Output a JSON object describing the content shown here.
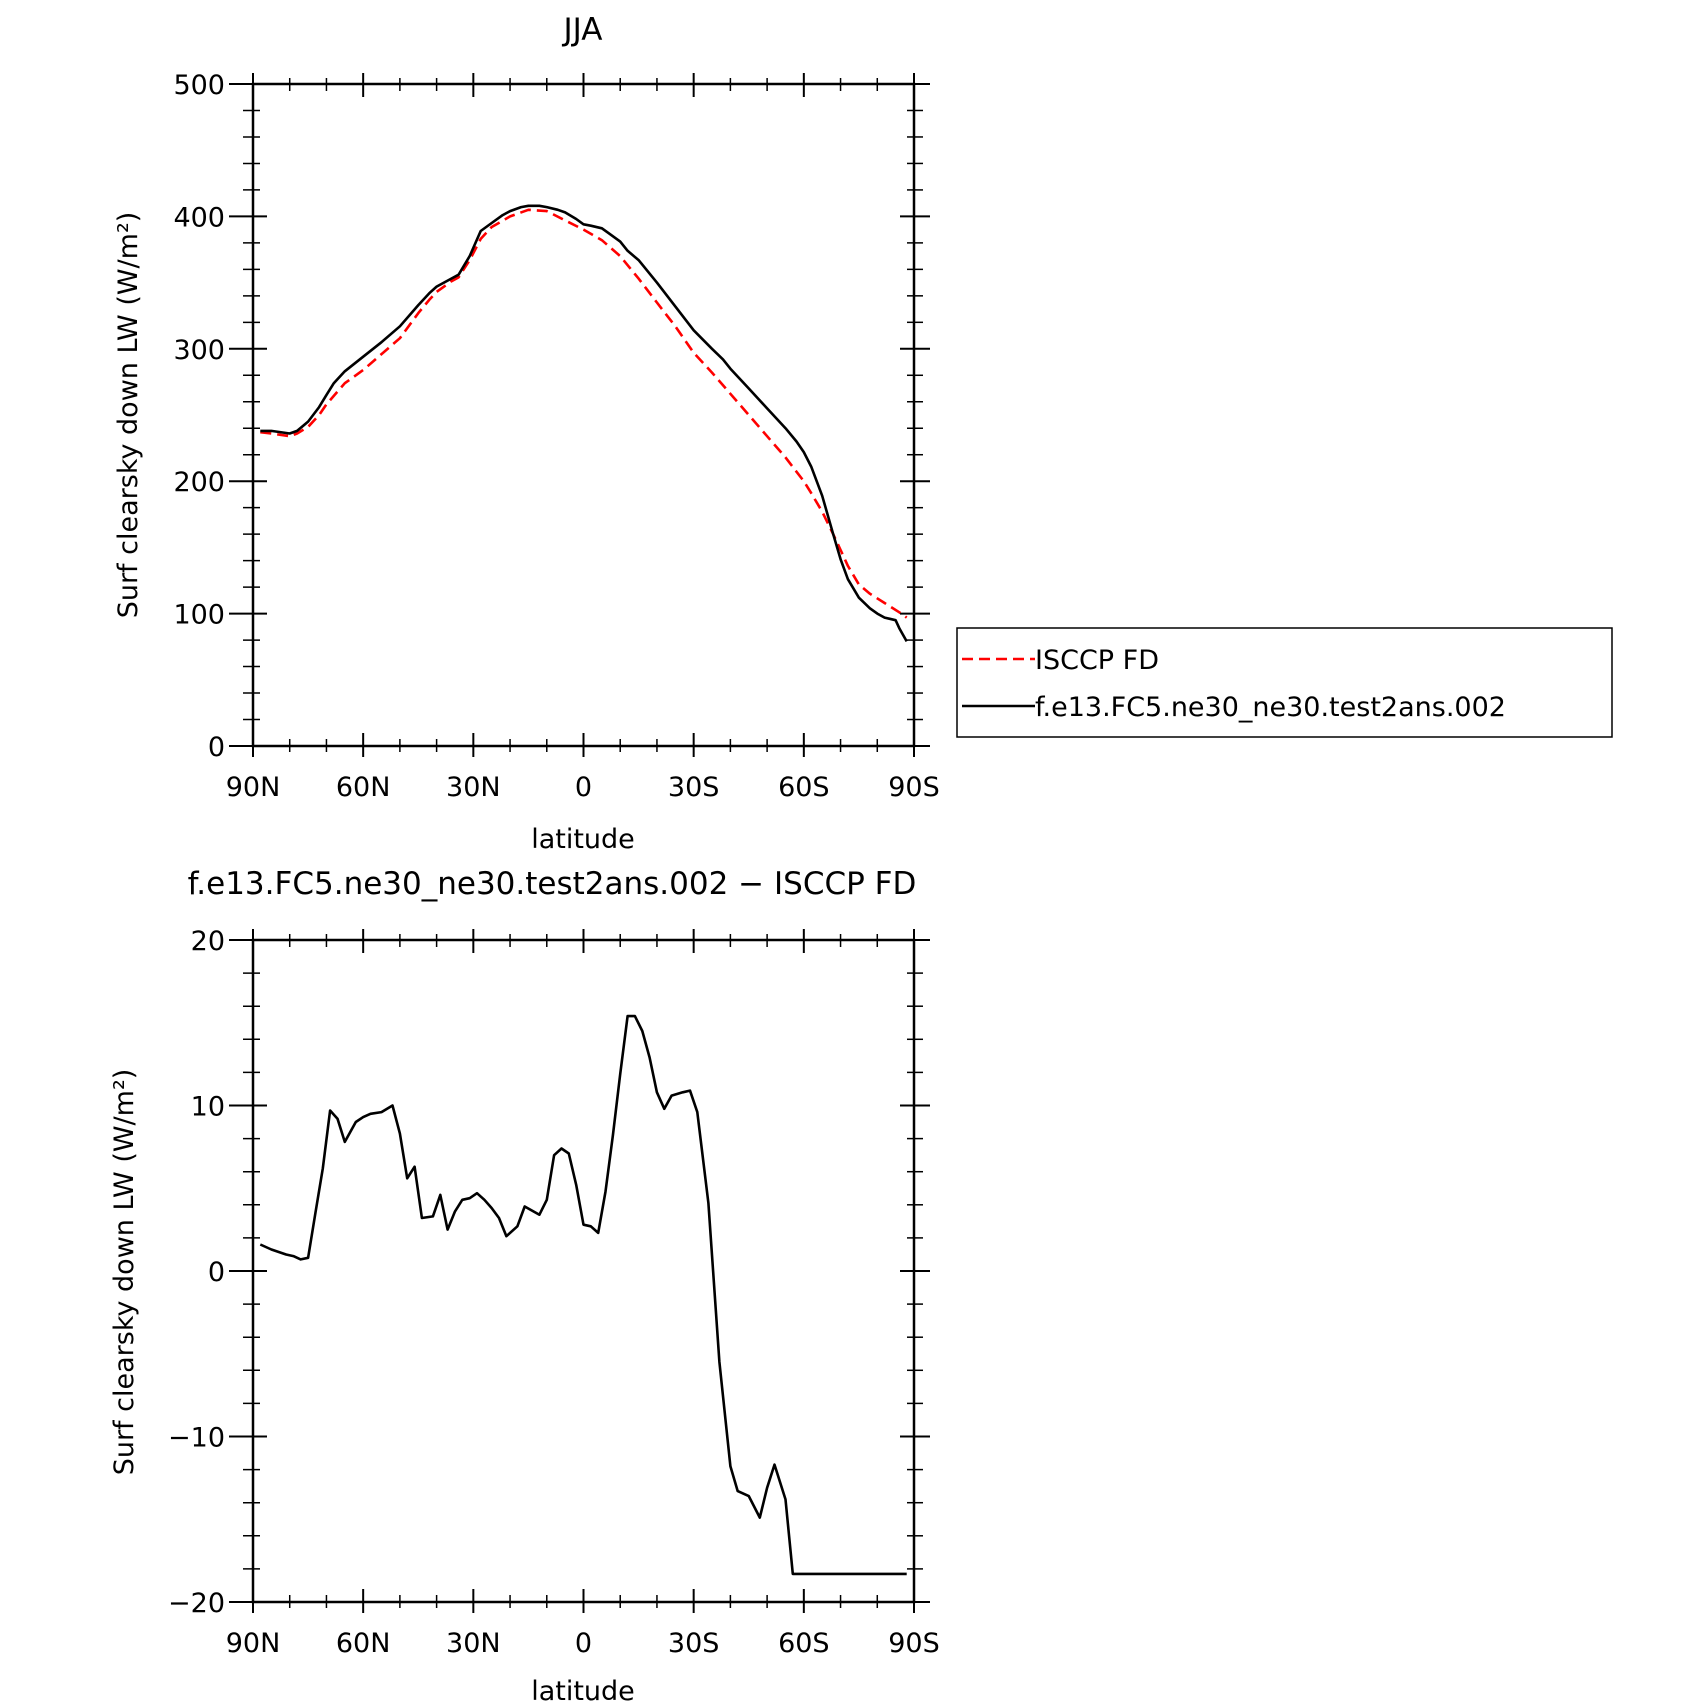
{
  "chart_data": [
    {
      "type": "line",
      "title": "JJA",
      "xlabel": "latitude",
      "ylabel": "Surf clearsky down LW (W/m²)",
      "ylim": [
        0,
        500
      ],
      "xlim": [
        90,
        -90
      ],
      "x_ticks": [
        90,
        60,
        30,
        0,
        -30,
        -60,
        -90
      ],
      "x_tick_labels": [
        "90N",
        "60N",
        "30N",
        "0",
        "30S",
        "60S",
        "90S"
      ],
      "y_ticks": [
        0,
        100,
        200,
        300,
        400,
        500
      ],
      "y_tick_labels": [
        "0",
        "100",
        "200",
        "300",
        "400",
        "500"
      ],
      "legend": "right",
      "series": [
        {
          "name": "ISCCP FD",
          "color": "#ff0000",
          "dash": "dashed",
          "x": [
            88,
            85,
            80,
            78,
            75,
            72,
            70,
            65,
            60,
            55,
            50,
            45,
            42,
            40,
            36,
            34,
            31,
            28,
            25,
            20,
            15,
            10,
            5,
            0,
            -5,
            -10,
            -15,
            -20,
            -25,
            -30,
            -35,
            -40,
            -45,
            -50,
            -55,
            -60,
            -62,
            -65,
            -68,
            -70,
            -72,
            -75,
            -78,
            -82,
            -86,
            -88
          ],
          "y": [
            237,
            236,
            234,
            236,
            241,
            250,
            258,
            274,
            284,
            296,
            308,
            327,
            337,
            343,
            351,
            354,
            367,
            383,
            392,
            400,
            405,
            404,
            397,
            390,
            382,
            370,
            353,
            335,
            317,
            297,
            282,
            266,
            250,
            234,
            218,
            200,
            191,
            177,
            160,
            148,
            136,
            122,
            115,
            108,
            101,
            97
          ]
        },
        {
          "name": "f.e13.FC5.ne30_ne30.test2ans.002",
          "color": "#000000",
          "dash": "solid",
          "x": [
            88,
            85,
            80,
            78,
            75,
            72,
            70,
            68,
            65,
            60,
            55,
            50,
            45,
            42,
            40,
            36,
            34,
            31,
            28,
            25,
            22,
            20,
            17,
            15,
            12,
            10,
            7,
            5,
            2,
            0,
            -2,
            -5,
            -7,
            -10,
            -12,
            -15,
            -20,
            -25,
            -30,
            -35,
            -38,
            -40,
            -45,
            -50,
            -55,
            -58,
            -60,
            -62,
            -65,
            -68,
            -70,
            -72,
            -75,
            -78,
            -80,
            -82,
            -85,
            -86,
            -88
          ],
          "y": [
            238,
            238,
            236,
            238,
            245,
            256,
            265,
            274,
            283,
            294,
            305,
            317,
            333,
            342,
            347,
            353,
            356,
            370,
            389,
            395,
            401,
            404,
            407,
            408,
            408,
            407,
            405,
            403,
            398,
            394,
            393,
            391,
            387,
            381,
            374,
            367,
            350,
            332,
            314,
            300,
            292,
            285,
            270,
            255,
            240,
            230,
            222,
            211,
            189,
            160,
            141,
            126,
            112,
            104,
            100,
            97,
            95,
            89,
            79
          ]
        }
      ]
    },
    {
      "type": "line",
      "title": "f.e13.FC5.ne30_ne30.test2ans.002 − ISCCP FD",
      "xlabel": "latitude",
      "ylabel": "Surf clearsky down LW (W/m²)",
      "ylim": [
        -20,
        20
      ],
      "xlim": [
        90,
        -90
      ],
      "x_ticks": [
        90,
        60,
        30,
        0,
        -30,
        -60,
        -90
      ],
      "x_tick_labels": [
        "90N",
        "60N",
        "30N",
        "0",
        "30S",
        "60S",
        "90S"
      ],
      "y_ticks": [
        -20,
        -10,
        0,
        10,
        20
      ],
      "y_tick_labels": [
        "−20",
        "−10",
        "0",
        "10",
        "20"
      ],
      "series": [
        {
          "color": "#000000",
          "dash": "solid",
          "x": [
            88,
            85,
            81,
            79,
            77,
            75,
            73,
            71,
            69,
            67,
            65,
            62,
            60,
            58,
            55,
            52,
            50,
            48,
            46,
            44,
            41,
            39,
            37,
            35,
            33,
            31,
            29,
            27,
            25,
            23,
            21,
            18,
            16,
            12,
            10,
            8,
            6,
            4,
            2,
            0,
            -2,
            -4,
            -6,
            -8,
            -10,
            -12,
            -14,
            -16,
            -18,
            -20,
            -22,
            -24,
            -27,
            -29,
            -31,
            -34,
            -37,
            -40,
            -42,
            -45,
            -48,
            -50,
            -52,
            -55,
            -57,
            -60,
            -62,
            -64,
            -66,
            -68,
            -70,
            -73,
            -75,
            -78,
            -80,
            -82,
            -84,
            -85,
            -86,
            -88
          ],
          "y": [
            1.6,
            1.3,
            1.0,
            0.9,
            0.7,
            0.8,
            3.5,
            6.2,
            9.7,
            9.2,
            7.8,
            9.0,
            9.3,
            9.5,
            9.6,
            10.0,
            8.3,
            5.6,
            6.3,
            3.2,
            3.3,
            4.6,
            2.5,
            3.6,
            4.3,
            4.4,
            4.7,
            4.3,
            3.8,
            3.2,
            2.1,
            2.7,
            3.9,
            3.4,
            4.3,
            7.0,
            7.4,
            7.1,
            5.2,
            2.8,
            2.7,
            2.3,
            4.8,
            8.2,
            11.9,
            15.4,
            15.4,
            14.5,
            12.9,
            10.8,
            9.8,
            10.6,
            10.8,
            10.9,
            9.6,
            4.1,
            -5.5,
            -11.8,
            -13.3,
            -13.6,
            -14.9,
            -13.1,
            -11.7,
            -13.8,
            -18.3,
            -18.3,
            -18.3,
            -18.3,
            -18.3,
            -18.3,
            -18.3,
            -18.3,
            -18.3,
            -18.3,
            -18.3,
            -18.3,
            -18.3,
            -18.3,
            -18.3,
            -18.3
          ]
        }
      ]
    }
  ]
}
